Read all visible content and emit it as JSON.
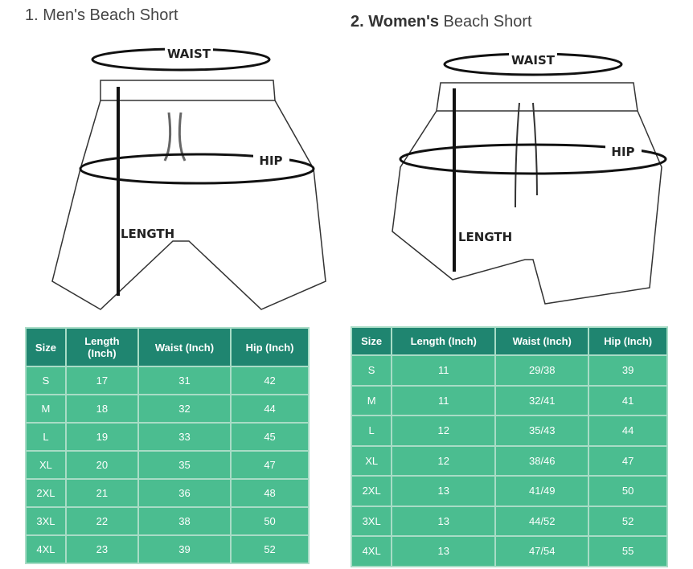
{
  "men": {
    "title_prefix": "1. Men's Beach Short",
    "labels": {
      "waist": "WAIST",
      "hip": "HIP",
      "length": "LENGTH"
    },
    "headers": [
      "Size",
      "Length (Inch)",
      "Waist (Inch)",
      "Hip (Inch)"
    ],
    "rows": [
      [
        "S",
        "17",
        "31",
        "42"
      ],
      [
        "M",
        "18",
        "32",
        "44"
      ],
      [
        "L",
        "19",
        "33",
        "45"
      ],
      [
        "XL",
        "20",
        "35",
        "47"
      ],
      [
        "2XL",
        "21",
        "36",
        "48"
      ],
      [
        "3XL",
        "22",
        "38",
        "50"
      ],
      [
        "4XL",
        "23",
        "39",
        "52"
      ]
    ]
  },
  "women": {
    "title_bold": "2. Women's",
    "title_rest": " Beach Short",
    "labels": {
      "waist": "WAIST",
      "hip": "HIP",
      "length": "LENGTH"
    },
    "headers": [
      "Size",
      "Length (Inch)",
      "Waist (Inch)",
      "Hip (Inch)"
    ],
    "rows": [
      [
        "S",
        "11",
        "29/38",
        "39"
      ],
      [
        "M",
        "11",
        "32/41",
        "41"
      ],
      [
        "L",
        "12",
        "35/43",
        "44"
      ],
      [
        "XL",
        "12",
        "38/46",
        "47"
      ],
      [
        "2XL",
        "13",
        "41/49",
        "50"
      ],
      [
        "3XL",
        "13",
        "44/52",
        "52"
      ],
      [
        "4XL",
        "13",
        "47/54",
        "55"
      ]
    ]
  },
  "colors": {
    "header": "#1f8570",
    "row": "#4bbd90",
    "border": "#a8dcc6"
  }
}
